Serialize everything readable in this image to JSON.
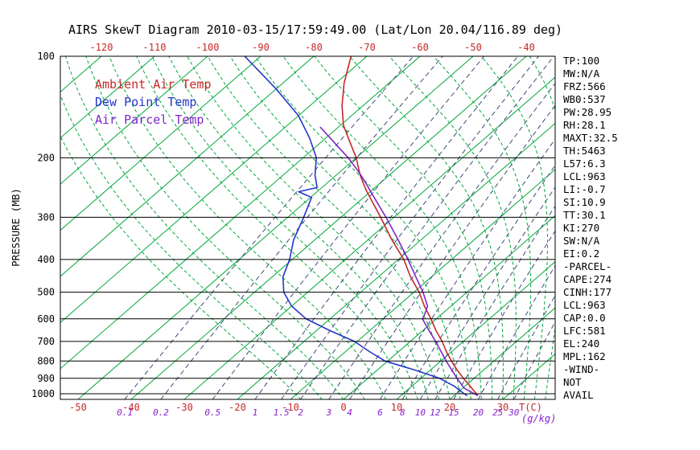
{
  "chart_data": {
    "type": "line",
    "title": "AIRS SkewT Diagram 2010-03-15/17:59:49.00 (Lat/Lon 20.04/116.89 deg)",
    "ylabel": "PRESSURE (MB)",
    "xlabel": "T(C)",
    "x2label": "(g/kg)",
    "y_axis": {
      "scale": "log",
      "unit": "MB",
      "ticks": [
        100,
        200,
        300,
        400,
        500,
        600,
        700,
        800,
        900,
        1000
      ],
      "range": [
        100,
        1040
      ]
    },
    "x_axis_top_labels_c": [
      -120,
      -110,
      -100,
      -90,
      -80,
      -70,
      -60,
      -50,
      -40
    ],
    "x_axis_bottom_labels_c": [
      -50,
      -40,
      -30,
      -20,
      -10,
      0,
      10,
      20,
      30
    ],
    "grid": {
      "isotherms_c": [
        -120,
        -110,
        -100,
        -90,
        -80,
        -70,
        -60,
        -50,
        -40,
        -30,
        -20,
        -10,
        0,
        10,
        20,
        30,
        40
      ],
      "mixing_ratio_lines_gkg": [
        0.1,
        0.2,
        0.5,
        1,
        1.5,
        2,
        3,
        4,
        6,
        8,
        10,
        12,
        15,
        20,
        25,
        30
      ],
      "moist_adiabat_start_c": [
        -8,
        -4,
        0,
        4,
        8,
        12,
        14,
        16,
        18,
        20,
        22,
        24,
        26,
        28,
        30,
        32,
        34,
        36,
        38,
        40
      ]
    },
    "series": [
      {
        "id": "ambient-temp",
        "name": "Ambient Air Temp",
        "color": "#c62828",
        "points_p_t": [
          [
            1013,
            24.5
          ],
          [
            1000,
            23.8
          ],
          [
            950,
            21
          ],
          [
            900,
            18
          ],
          [
            850,
            15
          ],
          [
            800,
            12
          ],
          [
            750,
            9
          ],
          [
            700,
            6
          ],
          [
            650,
            2.5
          ],
          [
            600,
            -1
          ],
          [
            550,
            -5
          ],
          [
            500,
            -9
          ],
          [
            450,
            -14
          ],
          [
            400,
            -19
          ],
          [
            350,
            -25.5
          ],
          [
            300,
            -32.5
          ],
          [
            250,
            -41
          ],
          [
            225,
            -45.5
          ],
          [
            200,
            -50
          ],
          [
            180,
            -54.5
          ],
          [
            160,
            -59.5
          ],
          [
            140,
            -64
          ],
          [
            120,
            -68.5
          ],
          [
            100,
            -73
          ]
        ]
      },
      {
        "id": "dew-point",
        "name": "Dew Point Temp",
        "color": "#2634cc",
        "points_p_t": [
          [
            1013,
            22.5
          ],
          [
            1000,
            21.5
          ],
          [
            950,
            18
          ],
          [
            900,
            13.5
          ],
          [
            850,
            7
          ],
          [
            800,
            -0.5
          ],
          [
            750,
            -5.5
          ],
          [
            700,
            -10.5
          ],
          [
            650,
            -17.5
          ],
          [
            600,
            -24.5
          ],
          [
            550,
            -30
          ],
          [
            500,
            -34.5
          ],
          [
            450,
            -38
          ],
          [
            400,
            -40.5
          ],
          [
            350,
            -44
          ],
          [
            300,
            -47
          ],
          [
            262,
            -49.8
          ],
          [
            252,
            -53.5
          ],
          [
            245,
            -50.9
          ],
          [
            225,
            -54
          ],
          [
            200,
            -57.5
          ],
          [
            175,
            -63
          ],
          [
            150,
            -70
          ],
          [
            125,
            -80
          ],
          [
            100,
            -93
          ]
        ]
      },
      {
        "id": "air-parcel",
        "name": "Air Parcel Temp",
        "color": "#7d26cc",
        "points_p_t": [
          [
            1013,
            24.5
          ],
          [
            963,
            20.3
          ],
          [
            900,
            16.8
          ],
          [
            850,
            14
          ],
          [
            800,
            11
          ],
          [
            750,
            8
          ],
          [
            700,
            4.8
          ],
          [
            650,
            1.2
          ],
          [
            600,
            -2.6
          ],
          [
            581,
            -3.2
          ],
          [
            550,
            -4.4
          ],
          [
            500,
            -8.3
          ],
          [
            450,
            -13
          ],
          [
            400,
            -18.2
          ],
          [
            350,
            -24.3
          ],
          [
            300,
            -31.5
          ],
          [
            250,
            -40.3
          ],
          [
            240,
            -42.2
          ],
          [
            220,
            -46.5
          ],
          [
            200,
            -51.5
          ],
          [
            180,
            -57.5
          ],
          [
            162,
            -63.5
          ]
        ]
      }
    ]
  },
  "legend": {
    "items": [
      {
        "label": "Ambient Air Temp",
        "color": "#c62828"
      },
      {
        "label": "Dew Point Temp",
        "color": "#2634cc"
      },
      {
        "label": "Air Parcel Temp",
        "color": "#7d26cc"
      }
    ]
  },
  "stats_panel": {
    "lines": [
      "TP:100",
      "MW:N/A",
      "FRZ:566",
      "WB0:537",
      "PW:28.95",
      "RH:28.1",
      "MAXT:32.5",
      "TH:5463",
      "L57:6.3",
      "LCL:963",
      "LI:-0.7",
      "SI:10.9",
      "TT:30.1",
      "KI:270",
      "SW:N/A",
      "EI:0.2",
      "-PARCEL-",
      "CAPE:274",
      "CINH:177",
      "LCL:963",
      "CAP:0.0",
      "LFC:581",
      "EL:240",
      "MPL:162",
      "-WIND-",
      "NOT",
      "AVAIL"
    ]
  },
  "colors": {
    "isotherm": "#00a839",
    "moist_adiabat": "#00a839",
    "mixing_line": "#3f4a7a",
    "temp_label": "#c62828",
    "mixing_label": "#8822cc",
    "axis": "#000000"
  }
}
